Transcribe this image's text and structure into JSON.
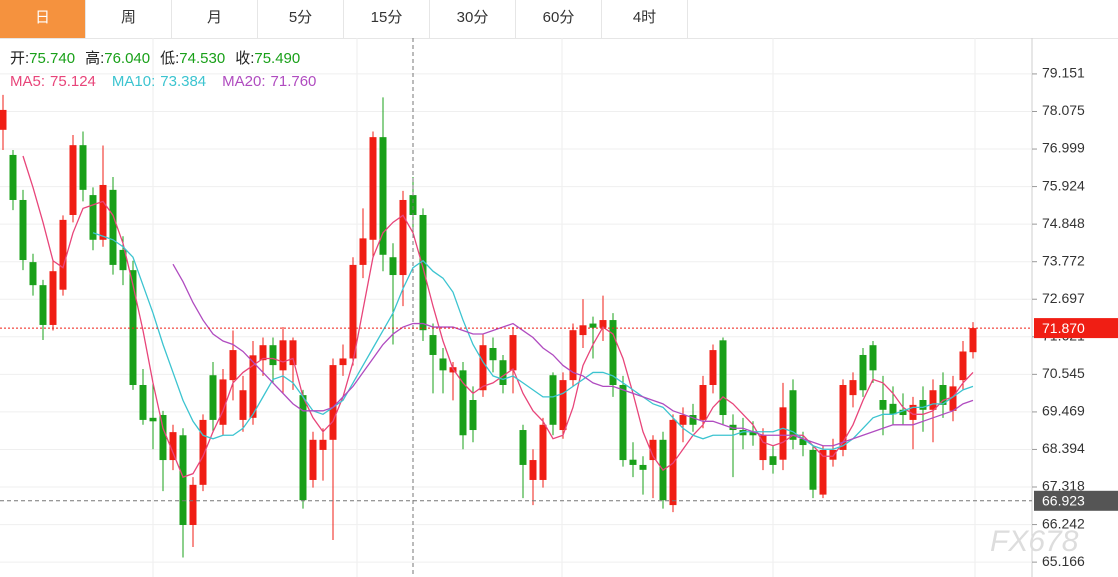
{
  "tabs": [
    "日",
    "周",
    "月",
    "5分",
    "15分",
    "30分",
    "60分",
    "4时"
  ],
  "active_tab": 0,
  "info": [
    {
      "label": "开:",
      "value": "75.740"
    },
    {
      "label": "高:",
      "value": "76.040"
    },
    {
      "label": "低:",
      "value": "74.530"
    },
    {
      "label": "收:",
      "value": "75.490"
    }
  ],
  "watermark": "FX678",
  "chart_data": {
    "type": "candlestick",
    "ylim": [
      64.74,
      80.18
    ],
    "yticks": [
      79.151,
      78.075,
      76.999,
      75.924,
      74.848,
      73.772,
      72.697,
      71.621,
      70.545,
      69.469,
      68.394,
      67.318,
      66.242,
      65.166
    ],
    "grid": true,
    "up_color": "#f01e14",
    "down_color": "#19a019",
    "last_price": {
      "value": 71.87,
      "label": "71.870"
    },
    "crosshair": {
      "index": 41,
      "price": 66.923
    },
    "ohlc": [
      [
        77.55,
        78.55,
        76.97,
        78.12
      ],
      [
        76.83,
        76.97,
        75.25,
        75.54
      ],
      [
        75.54,
        75.83,
        73.53,
        73.82
      ],
      [
        73.76,
        74.0,
        72.8,
        73.1
      ],
      [
        73.1,
        73.25,
        71.53,
        71.96
      ],
      [
        71.96,
        73.8,
        71.8,
        73.5
      ],
      [
        72.97,
        75.1,
        72.8,
        74.97
      ],
      [
        75.11,
        77.4,
        74.9,
        77.11
      ],
      [
        77.11,
        77.5,
        75.5,
        75.83
      ],
      [
        75.68,
        75.9,
        74.1,
        74.4
      ],
      [
        74.4,
        77.1,
        74.2,
        75.97
      ],
      [
        75.83,
        76.2,
        73.4,
        73.68
      ],
      [
        74.11,
        74.5,
        73.1,
        73.53
      ],
      [
        73.53,
        73.8,
        70.1,
        70.24
      ],
      [
        70.24,
        70.7,
        69.1,
        69.24
      ],
      [
        69.3,
        70.3,
        68.4,
        69.2
      ],
      [
        69.38,
        69.5,
        67.2,
        68.09
      ],
      [
        68.09,
        69.1,
        67.8,
        68.89
      ],
      [
        68.8,
        69.0,
        65.3,
        66.23
      ],
      [
        66.23,
        67.6,
        65.6,
        67.38
      ],
      [
        67.38,
        69.4,
        67.2,
        69.24
      ],
      [
        70.52,
        70.9,
        68.9,
        69.24
      ],
      [
        69.1,
        70.7,
        68.8,
        70.4
      ],
      [
        70.38,
        71.8,
        69.8,
        71.24
      ],
      [
        69.24,
        70.5,
        68.9,
        70.09
      ],
      [
        69.3,
        71.5,
        69.1,
        71.09
      ],
      [
        70.95,
        71.6,
        70.5,
        71.38
      ],
      [
        71.38,
        71.6,
        70.3,
        70.81
      ],
      [
        70.66,
        71.9,
        70.0,
        71.52
      ],
      [
        70.81,
        71.6,
        70.1,
        71.52
      ],
      [
        69.95,
        70.1,
        66.7,
        66.94
      ],
      [
        67.52,
        68.9,
        67.3,
        68.67
      ],
      [
        68.38,
        69.0,
        67.5,
        68.67
      ],
      [
        68.67,
        71.0,
        65.8,
        70.81
      ],
      [
        70.81,
        71.4,
        70.5,
        71.0
      ],
      [
        71.0,
        73.9,
        70.8,
        73.68
      ],
      [
        73.68,
        75.3,
        73.3,
        74.44
      ],
      [
        74.4,
        77.5,
        73.9,
        77.34
      ],
      [
        77.34,
        78.48,
        73.5,
        73.97
      ],
      [
        73.9,
        74.3,
        71.4,
        73.39
      ],
      [
        73.39,
        75.8,
        72.5,
        75.54
      ],
      [
        75.68,
        76.2,
        74.6,
        75.11
      ],
      [
        75.11,
        75.3,
        71.5,
        71.81
      ],
      [
        71.67,
        72.0,
        70.0,
        71.1
      ],
      [
        71.0,
        71.3,
        70.0,
        70.66
      ],
      [
        70.6,
        70.9,
        69.8,
        70.75
      ],
      [
        70.66,
        70.9,
        68.4,
        68.8
      ],
      [
        69.81,
        70.2,
        68.6,
        68.95
      ],
      [
        70.09,
        71.7,
        69.9,
        71.38
      ],
      [
        71.3,
        71.6,
        70.6,
        70.95
      ],
      [
        70.95,
        71.1,
        70.0,
        70.24
      ],
      [
        70.66,
        71.9,
        70.0,
        71.67
      ],
      [
        68.95,
        69.1,
        67.0,
        67.95
      ],
      [
        67.52,
        68.4,
        66.8,
        68.09
      ],
      [
        67.52,
        69.3,
        67.3,
        69.1
      ],
      [
        70.52,
        70.6,
        68.8,
        69.1
      ],
      [
        68.95,
        70.6,
        68.7,
        70.38
      ],
      [
        70.38,
        72.0,
        70.2,
        71.81
      ],
      [
        71.67,
        72.7,
        71.3,
        71.95
      ],
      [
        72.0,
        72.2,
        71.0,
        71.88
      ],
      [
        71.88,
        72.8,
        71.5,
        72.1
      ],
      [
        72.1,
        72.3,
        69.9,
        70.24
      ],
      [
        70.24,
        70.5,
        67.9,
        68.09
      ],
      [
        68.1,
        68.6,
        67.6,
        67.95
      ],
      [
        67.95,
        68.2,
        67.1,
        67.81
      ],
      [
        68.09,
        68.8,
        67.0,
        68.67
      ],
      [
        68.67,
        68.9,
        66.7,
        66.94
      ],
      [
        66.8,
        69.4,
        66.6,
        69.24
      ],
      [
        69.1,
        69.6,
        68.6,
        69.38
      ],
      [
        69.38,
        69.7,
        68.9,
        69.1
      ],
      [
        69.24,
        70.5,
        69.0,
        70.24
      ],
      [
        70.24,
        71.4,
        70.0,
        71.24
      ],
      [
        71.52,
        71.6,
        69.1,
        69.38
      ],
      [
        69.1,
        69.4,
        67.6,
        68.95
      ],
      [
        68.95,
        69.3,
        68.4,
        68.8
      ],
      [
        68.9,
        69.2,
        68.5,
        68.8
      ],
      [
        68.09,
        69.0,
        67.8,
        68.8
      ],
      [
        68.2,
        68.5,
        67.7,
        67.95
      ],
      [
        68.1,
        70.3,
        67.8,
        69.6
      ],
      [
        70.09,
        70.4,
        68.4,
        68.67
      ],
      [
        68.7,
        68.9,
        68.2,
        68.52
      ],
      [
        68.38,
        68.5,
        67.0,
        67.24
      ],
      [
        67.1,
        68.5,
        67.0,
        68.38
      ],
      [
        68.1,
        68.7,
        67.9,
        68.38
      ],
      [
        68.38,
        70.4,
        68.2,
        70.24
      ],
      [
        69.95,
        70.6,
        69.6,
        70.38
      ],
      [
        71.1,
        71.3,
        69.9,
        70.09
      ],
      [
        71.38,
        71.5,
        70.3,
        70.66
      ],
      [
        69.81,
        70.5,
        68.8,
        69.53
      ],
      [
        69.7,
        70.2,
        69.1,
        69.4
      ],
      [
        69.53,
        70.0,
        69.1,
        69.38
      ],
      [
        69.24,
        69.9,
        68.4,
        69.67
      ],
      [
        69.81,
        70.2,
        68.9,
        69.53
      ],
      [
        69.53,
        70.4,
        68.6,
        70.09
      ],
      [
        70.24,
        70.6,
        69.3,
        69.67
      ],
      [
        69.5,
        70.5,
        69.2,
        70.2
      ],
      [
        70.38,
        71.5,
        70.1,
        71.2
      ],
      [
        71.18,
        72.04,
        71.0,
        71.87
      ]
    ],
    "series": [
      {
        "name": "MA5:",
        "last": "75.124",
        "color": "#e8457a",
        "values": [
          null,
          null,
          76.8,
          75.9,
          74.9,
          73.8,
          73.6,
          74.6,
          75.3,
          75.4,
          75.5,
          75.1,
          74.3,
          73.1,
          71.8,
          70.3,
          69.0,
          68.3,
          67.6,
          67.7,
          68.2,
          68.9,
          69.5,
          70.3,
          70.6,
          70.8,
          71.0,
          71.0,
          70.9,
          71.0,
          69.9,
          69.3,
          68.9,
          69.2,
          69.9,
          70.9,
          72.4,
          73.9,
          74.6,
          74.9,
          75.1,
          74.6,
          73.6,
          72.5,
          71.5,
          70.7,
          70.3,
          70.0,
          70.2,
          70.3,
          70.5,
          70.7,
          70.0,
          69.5,
          69.2,
          68.7,
          68.8,
          69.6,
          70.8,
          71.4,
          71.9,
          71.7,
          71.0,
          70.0,
          68.9,
          68.2,
          67.8,
          68.0,
          68.4,
          68.8,
          69.1,
          69.6,
          69.9,
          69.7,
          69.4,
          69.1,
          68.6,
          68.5,
          68.6,
          68.8,
          68.8,
          68.5,
          68.2,
          68.2,
          68.6,
          69.1,
          69.8,
          70.4,
          70.3,
          70.0,
          69.6,
          69.4,
          69.4,
          69.5,
          69.8,
          69.9,
          70.3,
          70.6
        ]
      },
      {
        "name": "MA10:",
        "last": "73.384",
        "color": "#3cc4d0",
        "values": [
          null,
          null,
          null,
          null,
          null,
          null,
          null,
          null,
          null,
          74.6,
          74.5,
          74.4,
          74.2,
          73.9,
          73.1,
          72.3,
          71.4,
          70.6,
          69.8,
          69.2,
          68.8,
          68.7,
          68.8,
          68.8,
          69.0,
          69.4,
          69.9,
          70.4,
          70.5,
          70.3,
          69.9,
          69.5,
          69.4,
          69.6,
          69.8,
          70.3,
          70.8,
          71.3,
          71.8,
          72.3,
          73.0,
          73.6,
          73.8,
          73.5,
          73.3,
          72.9,
          72.1,
          71.4,
          70.9,
          70.5,
          70.4,
          70.5,
          70.3,
          70.1,
          69.9,
          69.9,
          70.0,
          70.2,
          70.4,
          70.6,
          70.6,
          70.5,
          70.3,
          70.1,
          69.9,
          69.7,
          69.6,
          69.3,
          69.0,
          68.8,
          68.7,
          68.8,
          68.8,
          68.8,
          68.9,
          68.9,
          68.9,
          68.9,
          69.0,
          68.9,
          68.7,
          68.5,
          68.4,
          68.4,
          68.5,
          68.7,
          69.0,
          69.3,
          69.4,
          69.4,
          69.5,
          69.6,
          69.6,
          69.7,
          69.7,
          69.9,
          70.1,
          70.2
        ]
      },
      {
        "name": "MA20:",
        "last": "71.760",
        "color": "#b04cc0",
        "values": [
          null,
          null,
          null,
          null,
          null,
          null,
          null,
          null,
          null,
          null,
          null,
          null,
          null,
          null,
          null,
          null,
          null,
          73.7,
          73.2,
          72.6,
          72.1,
          71.7,
          71.5,
          71.4,
          71.2,
          70.9,
          70.6,
          70.3,
          70.0,
          69.7,
          69.5,
          69.5,
          69.5,
          69.6,
          69.9,
          70.2,
          70.6,
          71.0,
          71.4,
          71.7,
          71.9,
          72.0,
          72.0,
          71.9,
          71.9,
          71.9,
          71.8,
          71.7,
          71.7,
          71.8,
          71.9,
          72.0,
          71.8,
          71.6,
          71.3,
          71.1,
          70.8,
          70.6,
          70.5,
          70.3,
          70.2,
          70.2,
          70.1,
          70.0,
          69.9,
          69.8,
          69.7,
          69.5,
          69.4,
          69.3,
          69.2,
          69.2,
          69.1,
          69.0,
          69.0,
          68.9,
          68.8,
          68.8,
          68.8,
          68.8,
          68.7,
          68.6,
          68.5,
          68.5,
          68.6,
          68.7,
          68.8,
          68.9,
          69.0,
          69.1,
          69.1,
          69.1,
          69.2,
          69.3,
          69.4,
          69.5,
          69.7,
          69.8
        ]
      }
    ]
  }
}
